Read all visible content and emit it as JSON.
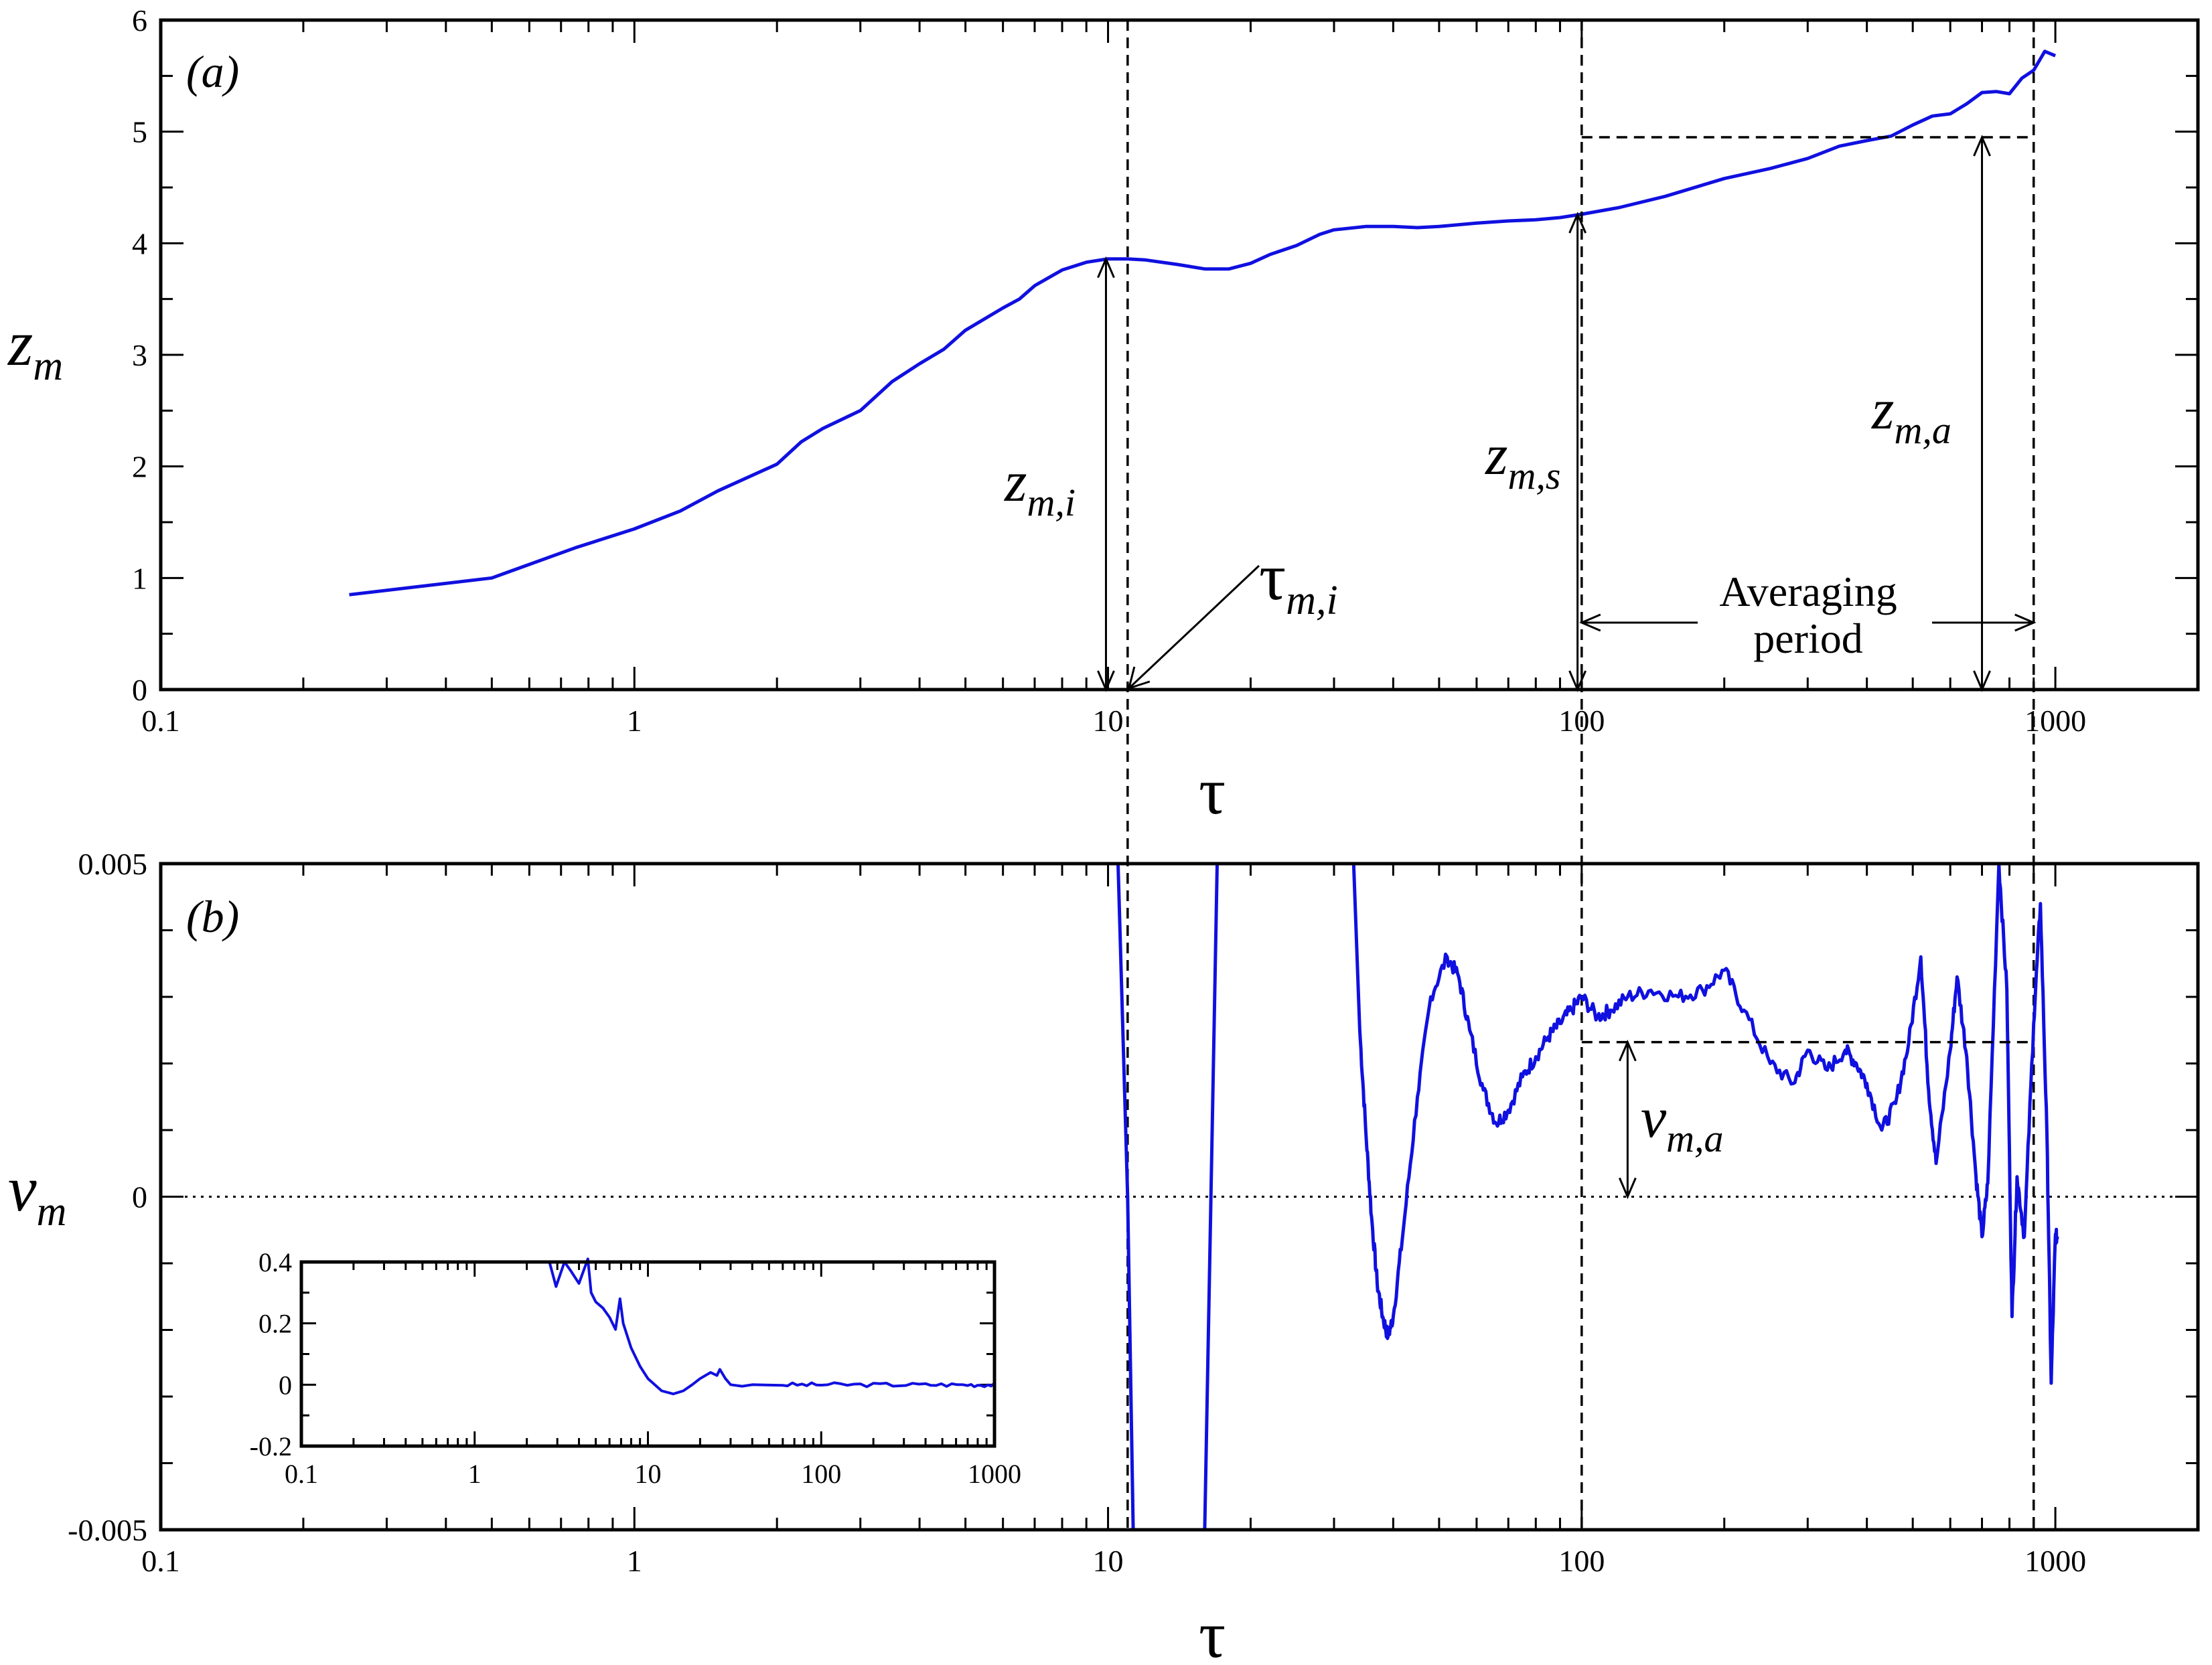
{
  "chart_data": [
    {
      "panel_label": "(a)",
      "type": "line",
      "xscale": "log",
      "xlim": [
        0.1,
        2000
      ],
      "ylim": [
        0,
        6
      ],
      "xlabel": "τ",
      "ylabel": "z",
      "ylabel_sub": "m",
      "xticks": [
        "0.1",
        "1",
        "10",
        "100",
        "1000"
      ],
      "yticks": [
        "0",
        "1",
        "2",
        "3",
        "4",
        "5",
        "6"
      ],
      "series": [
        {
          "x": [
            0.25,
            0.5,
            0.75,
            1.0,
            1.25,
            1.5,
            2.0,
            2.25,
            2.5,
            3.0,
            3.5,
            4.0,
            4.5,
            5.0,
            6.0,
            6.5,
            7.0,
            8.0,
            9.0,
            10.0,
            11.0,
            12.0,
            14.0,
            16.0,
            18.0,
            20.0,
            22.0,
            25.0,
            28.0,
            30.0,
            35.0,
            40.0,
            45.0,
            50.0,
            60.0,
            70.0,
            80.0,
            90.0,
            100,
            120,
            150,
            200,
            250,
            300,
            350,
            400,
            450,
            500,
            550,
            600,
            650,
            700,
            750,
            800,
            850,
            900,
            950,
            1000
          ],
          "y": [
            0.85,
            1.0,
            1.27,
            1.44,
            1.6,
            1.78,
            2.02,
            2.22,
            2.34,
            2.5,
            2.76,
            2.92,
            3.05,
            3.22,
            3.42,
            3.5,
            3.62,
            3.76,
            3.83,
            3.86,
            3.86,
            3.85,
            3.81,
            3.77,
            3.77,
            3.82,
            3.9,
            3.98,
            4.08,
            4.12,
            4.15,
            4.15,
            4.14,
            4.15,
            4.18,
            4.2,
            4.21,
            4.23,
            4.26,
            4.32,
            4.42,
            4.58,
            4.67,
            4.76,
            4.87,
            4.92,
            4.96,
            5.06,
            5.14,
            5.16,
            5.25,
            5.35,
            5.36,
            5.34,
            5.48,
            5.55,
            5.72,
            5.68
          ]
        }
      ],
      "annotations": {
        "zmi": "z",
        "zmi_sub": "m,i",
        "zms": "z",
        "zms_sub": "m,s",
        "zma": "z",
        "zma_sub": "m,a",
        "tau_mi": "τ",
        "tau_mi_sub": "m,i",
        "averaging_line1": "Averaging",
        "averaging_line2": "period"
      },
      "marker_values": {
        "tau_m_i": 11.0,
        "z_m_i": 3.86,
        "tau_s": 100,
        "z_m_s": 4.26,
        "tau_end": 900,
        "z_m_a": 4.95,
        "z_m_a_x": 700
      }
    },
    {
      "panel_label": "(b)",
      "type": "line",
      "xscale": "log",
      "xlim": [
        0.1,
        2000
      ],
      "ylim": [
        -0.005,
        0.005
      ],
      "xlabel": "τ",
      "ylabel": "v",
      "ylabel_sub": "m",
      "xticks": [
        "0.1",
        "1",
        "10",
        "100",
        "1000"
      ],
      "yticks": [
        "-0.005",
        "0",
        "0.005"
      ],
      "series": [
        {
          "x": [
            10.5,
            11.0,
            11.3,
            16.0,
            17.0,
            18.0,
            33.0,
            34.0,
            35.0,
            36.0,
            37.0,
            38.0,
            39.0,
            40.0,
            42.0,
            45.0,
            48.0,
            52.0,
            55.0,
            58.0,
            62.0,
            66.0,
            70.0,
            75.0,
            80.0,
            85.0,
            90.0,
            95.0,
            100,
            108,
            115,
            125,
            140,
            160,
            180,
            200,
            220,
            250,
            280,
            300,
            330,
            360,
            380,
            400,
            430,
            460,
            490,
            520,
            540,
            560,
            600,
            620,
            650,
            680,
            700,
            720,
            760,
            790,
            810,
            830,
            860,
            900,
            930,
            960,
            980,
            1000,
            1010
          ],
          "y": [
            0.005,
            0.0,
            -0.005,
            -0.005,
            0.005,
            0.005,
            0.005,
            0.0025,
            0.001,
            -0.0003,
            -0.0013,
            -0.0018,
            -0.0021,
            -0.0018,
            -0.0005,
            0.0015,
            0.003,
            0.0036,
            0.0033,
            0.0025,
            0.0016,
            0.0011,
            0.0013,
            0.0018,
            0.0021,
            0.0024,
            0.0026,
            0.0028,
            0.003,
            0.0027,
            0.0028,
            0.003,
            0.0031,
            0.003,
            0.0031,
            0.0034,
            0.0028,
            0.002,
            0.0017,
            0.0022,
            0.0019,
            0.0022,
            0.002,
            0.0017,
            0.001,
            0.0014,
            0.0023,
            0.0036,
            0.0016,
            0.0005,
            0.0022,
            0.0033,
            0.0021,
            0.0003,
            -0.0006,
            0.0002,
            0.005,
            0.0031,
            -0.0018,
            0.0003,
            -0.0006,
            0.0026,
            0.0044,
            0.0009,
            -0.0028,
            -0.0006,
            -0.0006
          ]
        }
      ],
      "annotations": {
        "vma": "v",
        "vma_sub": "m,a"
      },
      "marker_values": {
        "v_m_a": 0.00232,
        "v_m_a_x": 125
      },
      "inset": {
        "type": "line",
        "xscale": "log",
        "xlim": [
          0.1,
          1000
        ],
        "ylim": [
          -0.2,
          0.4
        ],
        "xticks": [
          "0.1",
          "1",
          "10",
          "100",
          "1000"
        ],
        "yticks": [
          "-0.2",
          "0",
          "0.2",
          "0.4"
        ],
        "series": [
          {
            "x": [
              2.7,
              2.95,
              3.3,
              3.6,
              4.0,
              4.5,
              4.7,
              5.0,
              5.5,
              6.0,
              6.5,
              6.9,
              7.2,
              8.0,
              9.0,
              10.0,
              12.0,
              14.0,
              16.0,
              18.0,
              20.0,
              23.0,
              25.0,
              26.0,
              28.0,
              30.0,
              35.0,
              40.0,
              60.0,
              100,
              200,
              400,
              700,
              1000
            ],
            "y": [
              0.4,
              0.32,
              0.4,
              0.37,
              0.33,
              0.41,
              0.3,
              0.27,
              0.25,
              0.22,
              0.18,
              0.28,
              0.2,
              0.12,
              0.06,
              0.02,
              -0.02,
              -0.03,
              -0.02,
              0.0,
              0.02,
              0.04,
              0.03,
              0.05,
              0.02,
              0.0,
              -0.005,
              0.0,
              0.0,
              0.0,
              0.0,
              0.0,
              0.0,
              0.0
            ]
          }
        ]
      }
    }
  ]
}
